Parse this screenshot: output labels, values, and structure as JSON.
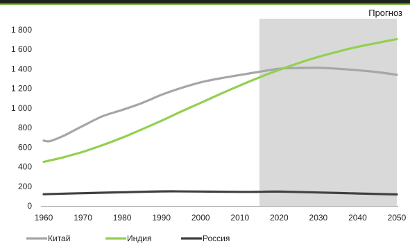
{
  "chart_data": {
    "type": "line",
    "title": "",
    "xlabel": "",
    "ylabel": "",
    "xlim": [
      1960,
      2050
    ],
    "ylim": [
      0,
      1800
    ],
    "x_ticks": [
      1960,
      1970,
      1980,
      1990,
      2000,
      2010,
      2020,
      2030,
      2040,
      2050
    ],
    "y_ticks": [
      0,
      200,
      400,
      600,
      800,
      1000,
      1200,
      1400,
      1600,
      1800
    ],
    "y_tick_labels": [
      "0",
      "200",
      "400",
      "600",
      "800",
      "1 000",
      "1 200",
      "1 400",
      "1 600",
      "1 800"
    ],
    "grid": false,
    "legend": "bottom-left",
    "forecast": {
      "label": "Прогноз",
      "x_start": 2015,
      "x_end": 2050,
      "color": "#d9d9d9"
    },
    "series": [
      {
        "name": "Китай",
        "color": "#a6a6a6",
        "points": [
          [
            1960,
            667
          ],
          [
            1961,
            660
          ],
          [
            1962,
            666
          ],
          [
            1965,
            715
          ],
          [
            1970,
            818
          ],
          [
            1975,
            916
          ],
          [
            1980,
            981
          ],
          [
            1985,
            1051
          ],
          [
            1990,
            1135
          ],
          [
            1995,
            1205
          ],
          [
            2000,
            1263
          ],
          [
            2005,
            1304
          ],
          [
            2010,
            1338
          ],
          [
            2015,
            1371
          ],
          [
            2020,
            1402
          ],
          [
            2025,
            1410
          ],
          [
            2030,
            1412
          ],
          [
            2035,
            1402
          ],
          [
            2040,
            1387
          ],
          [
            2045,
            1368
          ],
          [
            2050,
            1340
          ]
        ]
      },
      {
        "name": "Индия",
        "color": "#92d050",
        "points": [
          [
            1960,
            450
          ],
          [
            1965,
            497
          ],
          [
            1970,
            553
          ],
          [
            1975,
            621
          ],
          [
            1980,
            697
          ],
          [
            1985,
            782
          ],
          [
            1990,
            870
          ],
          [
            1995,
            964
          ],
          [
            2000,
            1053
          ],
          [
            2005,
            1144
          ],
          [
            2010,
            1231
          ],
          [
            2015,
            1314
          ],
          [
            2020,
            1390
          ],
          [
            2025,
            1460
          ],
          [
            2030,
            1523
          ],
          [
            2035,
            1577
          ],
          [
            2040,
            1626
          ],
          [
            2045,
            1666
          ],
          [
            2050,
            1705
          ]
        ]
      },
      {
        "name": "Россия",
        "color": "#404040",
        "points": [
          [
            1960,
            119
          ],
          [
            1970,
            130
          ],
          [
            1980,
            139
          ],
          [
            1990,
            148
          ],
          [
            2000,
            147
          ],
          [
            2010,
            143
          ],
          [
            2015,
            144
          ],
          [
            2020,
            146
          ],
          [
            2030,
            137
          ],
          [
            2040,
            127
          ],
          [
            2050,
            117
          ]
        ]
      }
    ]
  }
}
